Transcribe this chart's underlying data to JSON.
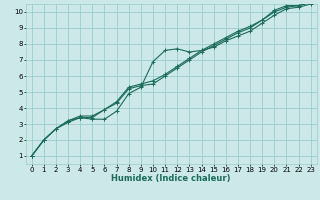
{
  "xlabel": "Humidex (Indice chaleur)",
  "bg_color": "#cce8e8",
  "grid_color": "#99cccc",
  "line_color": "#1a6b5a",
  "xlim": [
    -0.5,
    23.5
  ],
  "ylim": [
    0.5,
    10.5
  ],
  "xticks": [
    0,
    1,
    2,
    3,
    4,
    5,
    6,
    7,
    8,
    9,
    10,
    11,
    12,
    13,
    14,
    15,
    16,
    17,
    18,
    19,
    20,
    21,
    22,
    23
  ],
  "yticks": [
    1,
    2,
    3,
    4,
    5,
    6,
    7,
    8,
    9,
    10
  ],
  "line1_x": [
    0,
    1,
    2,
    3,
    4,
    5,
    6,
    7,
    8,
    9,
    10,
    11,
    12,
    13,
    14,
    15,
    16,
    17,
    18,
    19,
    20,
    21,
    22,
    23
  ],
  "line1_y": [
    1.0,
    2.0,
    2.7,
    3.1,
    3.4,
    3.3,
    3.3,
    3.8,
    4.9,
    5.3,
    6.9,
    7.6,
    7.7,
    7.5,
    7.6,
    7.8,
    8.2,
    8.5,
    8.8,
    9.3,
    9.8,
    10.2,
    10.3,
    10.5
  ],
  "line2_x": [
    0,
    1,
    2,
    3,
    4,
    5,
    6,
    7,
    8,
    9,
    10,
    11,
    12,
    13,
    14,
    15,
    16,
    17,
    18,
    19,
    20,
    21,
    22,
    23
  ],
  "line2_y": [
    1.0,
    2.0,
    2.7,
    3.2,
    3.4,
    3.4,
    3.9,
    4.3,
    5.2,
    5.4,
    5.5,
    6.0,
    6.5,
    7.0,
    7.5,
    7.9,
    8.3,
    8.7,
    9.0,
    9.5,
    10.0,
    10.3,
    10.4,
    10.6
  ],
  "line3_x": [
    0,
    1,
    2,
    3,
    4,
    5,
    6,
    7,
    8,
    9,
    10,
    11,
    12,
    13,
    14,
    15,
    16,
    17,
    18,
    19,
    20,
    21,
    22,
    23
  ],
  "line3_y": [
    1.0,
    2.0,
    2.7,
    3.2,
    3.5,
    3.5,
    3.9,
    4.4,
    5.3,
    5.5,
    5.7,
    6.1,
    6.6,
    7.1,
    7.6,
    8.0,
    8.4,
    8.8,
    9.1,
    9.5,
    10.1,
    10.4,
    10.4,
    10.6
  ],
  "tick_fontsize": 5.0,
  "xlabel_fontsize": 6.0,
  "line_width": 0.8,
  "marker_size": 3.0
}
